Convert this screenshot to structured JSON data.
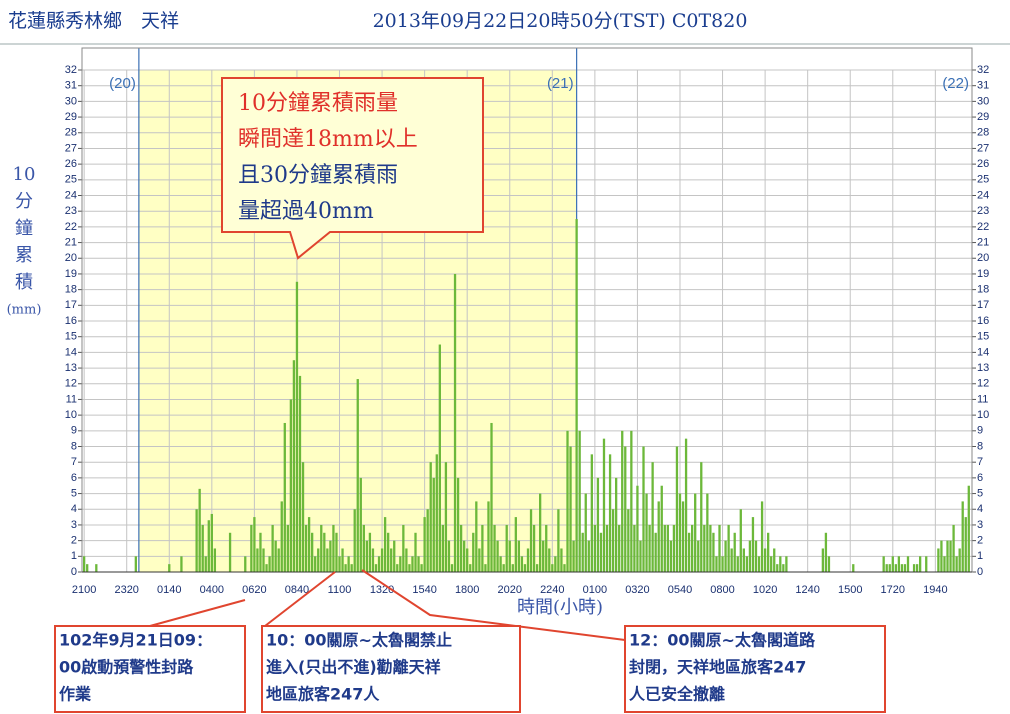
{
  "chart_data": {
    "type": "bar",
    "title": "花蓮縣秀林鄉　天祥",
    "subtitle": "2013年09月22日20時50分(TST)  C0T820",
    "ylabel": [
      "10",
      "分",
      "鐘",
      "累",
      "積",
      "(mm)"
    ],
    "xlabel": "時間(小時)",
    "day_markers": [
      "(20)",
      "(21)",
      "(22)"
    ],
    "callout": [
      "10分鐘累積雨量",
      "瞬間達18mm以上",
      "且30分鐘累積雨",
      "量超過40mm"
    ],
    "notes": [
      [
        "102年9月21日09：",
        "00啟動預警性封路",
        "作業"
      ],
      [
        "10：00關原~太魯閣禁止",
        "進入(只出不進)勸離天祥",
        "地區旅客247人"
      ],
      [
        "12：00關原~太魯閣道路",
        "封閉，天祥地區旅客247",
        "人已安全撤離"
      ]
    ],
    "color": "#6cb83a",
    "grid": true,
    "ylim": [
      0,
      32
    ],
    "yticks": [
      0,
      1,
      2,
      3,
      4,
      5,
      6,
      7,
      8,
      9,
      10,
      11,
      12,
      13,
      14,
      15,
      16,
      17,
      18,
      19,
      20,
      21,
      22,
      23,
      24,
      25,
      26,
      27,
      28,
      29,
      30,
      31,
      32
    ],
    "categories": [
      "2100",
      null,
      null,
      null,
      null,
      null,
      null,
      null,
      null,
      null,
      null,
      null,
      null,
      null,
      "2320",
      null,
      null,
      null,
      null,
      null,
      null,
      null,
      null,
      null,
      null,
      null,
      null,
      null,
      "0140",
      null,
      null,
      null,
      null,
      null,
      null,
      null,
      null,
      null,
      null,
      null,
      null,
      null,
      "0400",
      null,
      null,
      null,
      null,
      null,
      null,
      null,
      null,
      null,
      null,
      null,
      null,
      null,
      "0620",
      null,
      null,
      null,
      null,
      null,
      null,
      null,
      null,
      null,
      null,
      null,
      null,
      null,
      "0840",
      null,
      null,
      null,
      null,
      null,
      null,
      null,
      null,
      null,
      null,
      null,
      null,
      null,
      "1100",
      null,
      null,
      null,
      null,
      null,
      null,
      null,
      null,
      null,
      null,
      null,
      null,
      null,
      "1320",
      null,
      null,
      null,
      null,
      null,
      null,
      null,
      null,
      null,
      null,
      null,
      null,
      null,
      "1540",
      null,
      null,
      null,
      null,
      null,
      null,
      null,
      null,
      null,
      null,
      null,
      null,
      null,
      "1800",
      null,
      null,
      null,
      null,
      null,
      null,
      null,
      null,
      null,
      null,
      null,
      null,
      null,
      "2020",
      null,
      null,
      null,
      null,
      null,
      null,
      null,
      null,
      null,
      null,
      null,
      null,
      null,
      "2240",
      null,
      null,
      null,
      null,
      null,
      null,
      null,
      null,
      null,
      null,
      null,
      null,
      null,
      "0100",
      null,
      null,
      null,
      null,
      null,
      null,
      null,
      null,
      null,
      null,
      null,
      null,
      null,
      "0320",
      null,
      null,
      null,
      null,
      null,
      null,
      null,
      null,
      null,
      null,
      null,
      null,
      null,
      "0540",
      null,
      null,
      null,
      null,
      null,
      null,
      null,
      null,
      null,
      null,
      null,
      null,
      null,
      "0800",
      null,
      null,
      null,
      null,
      null,
      null,
      null,
      null,
      null,
      null,
      null,
      null,
      null,
      "1020",
      null,
      null,
      null,
      null,
      null,
      null,
      null,
      null,
      null,
      null,
      null,
      null,
      null,
      "1240",
      null,
      null,
      null,
      null,
      null,
      null,
      null,
      null,
      null,
      null,
      null,
      null,
      null,
      "1500",
      null,
      null,
      null,
      null,
      null,
      null,
      null,
      null,
      null,
      null,
      null,
      null,
      null,
      "1720",
      null,
      null,
      null,
      null,
      null,
      null,
      null,
      null,
      null,
      null,
      null,
      null,
      null,
      "1940",
      null,
      null,
      null,
      null,
      null,
      null,
      null,
      null,
      null,
      null,
      null
    ],
    "values": [
      1,
      0.5,
      0,
      0,
      0.5,
      0,
      0,
      0,
      0,
      0,
      0,
      0,
      0,
      0,
      0,
      0,
      0,
      1,
      0,
      0,
      0,
      0,
      0,
      0,
      0,
      0,
      0,
      0,
      0.5,
      0,
      0,
      0,
      1,
      0,
      0,
      0,
      0,
      4,
      5.3,
      3,
      1,
      3.3,
      3.7,
      1.5,
      0,
      0,
      0,
      0,
      2.5,
      0,
      0,
      0,
      0,
      1,
      0,
      3,
      3.5,
      1.5,
      2.5,
      1.5,
      0.5,
      1,
      3,
      2,
      1.5,
      4.5,
      9.5,
      3,
      11,
      13.5,
      18.5,
      12.5,
      7,
      3,
      3.5,
      2.5,
      1,
      1.5,
      3,
      2.5,
      1.5,
      2,
      3,
      2.5,
      1,
      1.5,
      0.5,
      1,
      0.5,
      4,
      12.3,
      6,
      3,
      2,
      2.5,
      1.5,
      0.5,
      1,
      1.5,
      3.5,
      2.5,
      1.5,
      2,
      0.5,
      1,
      3,
      1.5,
      0.5,
      1,
      2.5,
      1,
      0.5,
      3.5,
      4,
      7,
      6,
      7.5,
      14.5,
      3,
      7,
      2,
      0.5,
      19,
      6,
      3,
      2,
      1.5,
      0.5,
      2.5,
      4.5,
      1.5,
      3,
      0.5,
      4.5,
      9.5,
      3,
      2,
      1,
      0.5,
      3,
      2,
      0.5,
      3.5,
      2,
      1,
      0.5,
      1.5,
      4,
      3,
      0.5,
      5,
      2,
      3,
      1.5,
      0.5,
      1,
      4,
      1.5,
      0.5,
      9,
      8,
      2,
      22.5,
      9,
      2.5,
      5,
      2,
      7.5,
      3,
      6,
      2.5,
      8.5,
      3,
      7.5,
      4,
      6,
      3,
      9,
      8,
      4,
      9,
      3,
      5.5,
      2,
      8,
      5,
      3,
      7,
      2.5,
      4.5,
      5.5,
      3,
      3,
      2,
      3,
      8,
      5,
      4.5,
      8.5,
      2.5,
      3,
      5,
      2,
      7,
      3,
      5,
      3,
      2.5,
      1,
      3,
      1,
      2,
      3,
      1.5,
      2.5,
      1,
      4,
      1.5,
      1,
      2,
      3.5,
      2,
      1,
      4.5,
      1.5,
      2.5,
      1,
      1.5,
      0.5,
      1,
      0.5,
      1,
      0,
      0,
      0,
      0,
      0,
      0,
      0,
      0,
      0,
      0,
      0,
      1.5,
      2.5,
      1,
      0,
      0,
      0,
      0,
      0,
      0,
      0,
      0.5,
      0,
      0,
      0,
      0,
      0,
      0,
      0,
      0,
      0,
      1,
      0.5,
      0.5,
      1,
      0.5,
      1,
      0.5,
      0.5,
      1,
      0,
      0.5,
      0.5,
      1,
      0,
      1,
      0,
      0,
      0,
      1.5,
      2,
      1,
      2,
      2,
      3,
      1,
      1.5,
      4.5,
      3.5,
      5.5
    ]
  }
}
